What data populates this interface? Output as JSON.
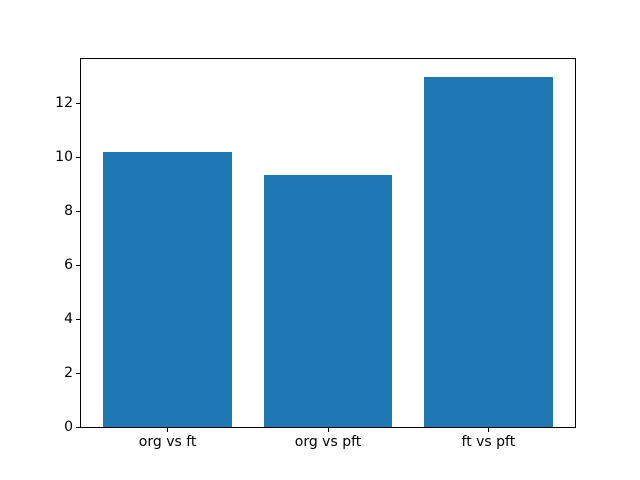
{
  "chart_data": {
    "type": "bar",
    "title": "",
    "xlabel": "",
    "ylabel": "",
    "categories": [
      "org vs ft",
      "org vs pft",
      "ft vs pft"
    ],
    "values": [
      10.2,
      9.35,
      13.0
    ],
    "yticks": [
      0,
      2,
      4,
      6,
      8,
      10,
      12
    ],
    "ylim": [
      0,
      13.65
    ],
    "grid": false,
    "legend": null,
    "bar_color": "#1f77b4",
    "spine_color": "#000000",
    "background_color": "#ffffff",
    "bar_width_fraction": 0.8,
    "x_margin": 0.54
  }
}
